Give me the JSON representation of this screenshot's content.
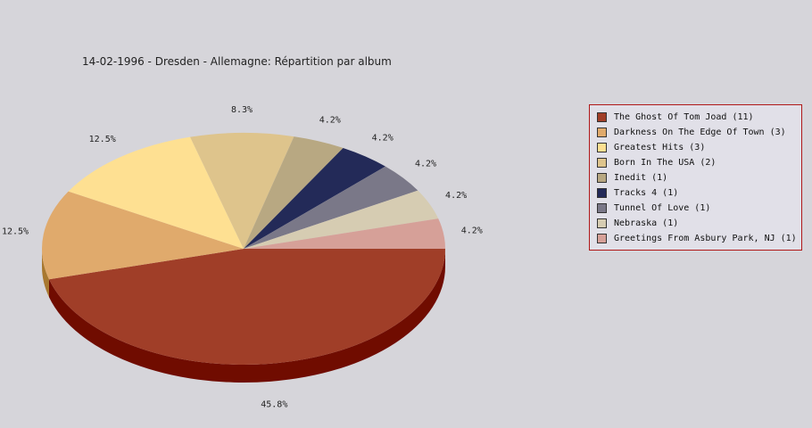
{
  "chart_data": {
    "type": "pie",
    "title": "14-02-1996 - Dresden - Allemagne:  Répartition par album",
    "slices": [
      {
        "label": "The Ghost Of Tom Joad",
        "count": 11,
        "value": 45.8,
        "value_label": "45.8%",
        "color": "#a03e28",
        "side_color": "#700c00"
      },
      {
        "label": "Darkness On The Edge Of Town",
        "count": 3,
        "value": 12.5,
        "value_label": "12.5%",
        "color": "#e0aa6c",
        "side_color": "#a87830"
      },
      {
        "label": "Greatest Hits",
        "count": 3,
        "value": 12.5,
        "value_label": "12.5%",
        "color": "#fee092",
        "side_color": "#c0a060"
      },
      {
        "label": "Born In The USA",
        "count": 2,
        "value": 8.3,
        "value_label": "8.3%",
        "color": "#dec48c",
        "side_color": "#a89060"
      },
      {
        "label": "Inedit",
        "count": 1,
        "value": 4.2,
        "value_label": "4.2%",
        "color": "#b8a882",
        "side_color": "#807050"
      },
      {
        "label": "Tracks 4",
        "count": 1,
        "value": 4.2,
        "value_label": "4.2%",
        "color": "#232a58",
        "side_color": "#101530"
      },
      {
        "label": "Tunnel Of Love",
        "count": 1,
        "value": 4.2,
        "value_label": "4.2%",
        "color": "#7a7888",
        "side_color": "#505060"
      },
      {
        "label": "Nebraska",
        "count": 1,
        "value": 4.2,
        "value_label": "4.2%",
        "color": "#d6ccb2",
        "side_color": "#a09880"
      },
      {
        "label": "Greetings From Asbury Park, NJ",
        "count": 1,
        "value": 4.2,
        "value_label": "4.2%",
        "color": "#d6a098",
        "side_color": "#a06860"
      }
    ],
    "legend": [
      "The Ghost Of Tom Joad (11)",
      "Darkness On The Edge Of Town (3)",
      "Greatest Hits (3)",
      "Born In The USA (2)",
      "Inedit (1)",
      "Tracks 4 (1)",
      "Tunnel Of Love (1)",
      "Nebraska (1)",
      "Greetings From Asbury Park, NJ (1)"
    ],
    "legend_position": "right"
  }
}
